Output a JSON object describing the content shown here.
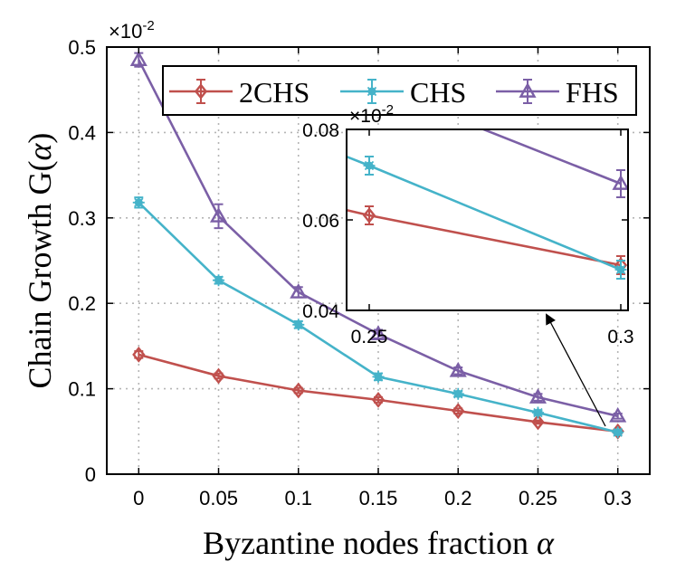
{
  "chart_data": {
    "type": "line",
    "xlabel": "Byzantine nodes fraction",
    "xlabel_symbol": "α",
    "ylabel": "Chain Growth G(",
    "ylabel_symbol": "α",
    "ylabel_close": ")",
    "x": [
      0,
      0.05,
      0.1,
      0.15,
      0.2,
      0.25,
      0.3
    ],
    "x_tick_labels": [
      "0",
      "0.05",
      "0.1",
      "0.15",
      "0.2",
      "0.25",
      "0.3"
    ],
    "xlim": [
      -0.02,
      0.32
    ],
    "ylim": [
      0,
      0.5
    ],
    "y_ticks": [
      0,
      0.1,
      0.2,
      0.3,
      0.4,
      0.5
    ],
    "y_tick_labels": [
      "0",
      "0.1",
      "0.2",
      "0.3",
      "0.4",
      "0.5"
    ],
    "y_multiplier_base": "×10",
    "y_multiplier_exp": "-2",
    "grid": true,
    "legend_position": "top",
    "series": [
      {
        "name": "2CHS",
        "color": "#c0504d",
        "marker": "diamond",
        "values": [
          0.14,
          0.115,
          0.098,
          0.087,
          0.074,
          0.061,
          0.05
        ],
        "errors": [
          0.004,
          0.003,
          0.003,
          0.003,
          0.003,
          0.002,
          0.002
        ]
      },
      {
        "name": "CHS",
        "color": "#45b3c9",
        "marker": "star",
        "values": [
          0.318,
          0.227,
          0.175,
          0.114,
          0.094,
          0.072,
          0.049
        ],
        "errors": [
          0.006,
          0.004,
          0.004,
          0.004,
          0.003,
          0.002,
          0.002
        ]
      },
      {
        "name": "FHS",
        "color": "#7b5fa6",
        "marker": "triangle",
        "values": [
          0.485,
          0.302,
          0.213,
          0.164,
          0.121,
          0.09,
          0.068
        ],
        "errors": [
          0.008,
          0.014,
          0.006,
          0.005,
          0.004,
          0.004,
          0.003
        ]
      }
    ],
    "inset": {
      "xlim": [
        0.25,
        0.3
      ],
      "ylim": [
        0.04,
        0.08
      ],
      "x_ticks": [
        0.25,
        0.3
      ],
      "x_tick_labels": [
        "0.25",
        "0.3"
      ],
      "y_ticks": [
        0.04,
        0.06,
        0.08
      ],
      "y_tick_labels": [
        "0.04",
        "0.06",
        "0.08"
      ],
      "y_multiplier_base": "×10",
      "y_multiplier_exp": "-2"
    }
  }
}
